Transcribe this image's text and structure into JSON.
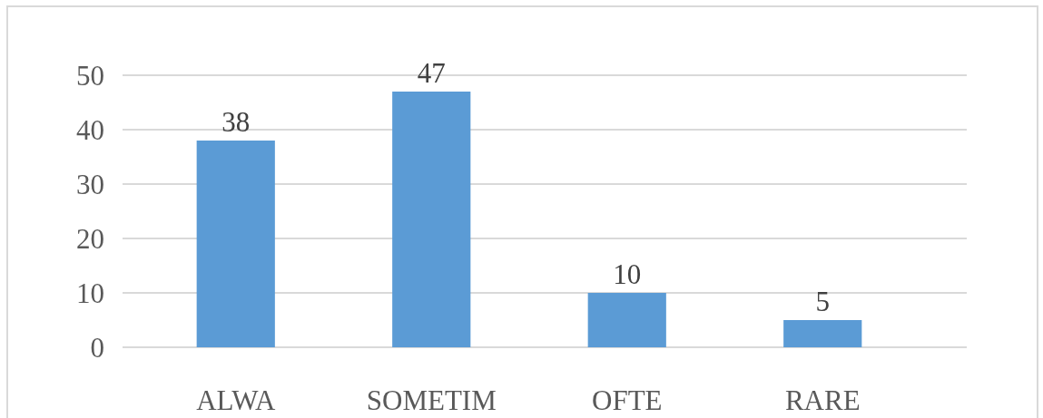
{
  "chart_data": {
    "type": "bar",
    "categories": [
      "ALWA",
      "SOMETIM",
      "OFTE",
      "RARE"
    ],
    "values": [
      38,
      47,
      10,
      5
    ],
    "color": "#5b9bd5",
    "ylim": [
      0,
      50
    ],
    "yticks": [
      0,
      10,
      20,
      30,
      40,
      50
    ],
    "grid": "y",
    "data_labels": true
  }
}
